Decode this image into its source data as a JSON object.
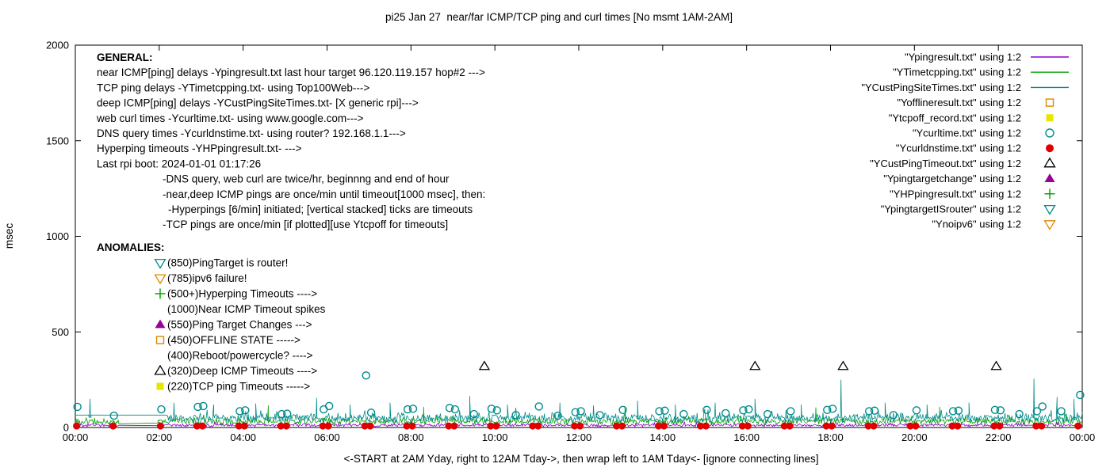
{
  "chart_data": {
    "type": "line+scatter",
    "title": "pi25 Jan 27  near/far ICMP/TCP ping and curl times [No msmt 1AM-2AM]",
    "ylabel": "msec",
    "xlabel": "<-START at 2AM Yday, right to 12AM Tday->, then wrap left to 1AM Tday<- [ignore connecting lines]",
    "xlim_hours": [
      0,
      24
    ],
    "ylim_msec": [
      0,
      2000
    ],
    "yticks": [
      0,
      500,
      1000,
      1500,
      2000
    ],
    "xticks": [
      {
        "hour": 0,
        "label": "00:00"
      },
      {
        "hour": 2,
        "label": "02:00"
      },
      {
        "hour": 4,
        "label": "04:00"
      },
      {
        "hour": 6,
        "label": "06:00"
      },
      {
        "hour": 8,
        "label": "08:00"
      },
      {
        "hour": 10,
        "label": "10:00"
      },
      {
        "hour": 12,
        "label": "12:00"
      },
      {
        "hour": 14,
        "label": "14:00"
      },
      {
        "hour": 16,
        "label": "16:00"
      },
      {
        "hour": 18,
        "label": "18:00"
      },
      {
        "hour": 20,
        "label": "20:00"
      },
      {
        "hour": 22,
        "label": "22:00"
      },
      {
        "hour": 24,
        "label": "00:00"
      }
    ],
    "no_measurement_gap_hours": [
      1,
      2
    ],
    "legend": [
      {
        "label": "\"Ypingresult.txt\" using 1:2",
        "marker": "line",
        "color": "#9400d3"
      },
      {
        "label": "\"YTimetcpping.txt\" using 1:2",
        "marker": "line",
        "color": "#00a000"
      },
      {
        "label": "\"YCustPingSiteTimes.txt\" using 1:2",
        "marker": "line",
        "color": "#008b8b"
      },
      {
        "label": "\"Yofflineresult.txt\" using 1:2",
        "marker": "square-open",
        "color": "#dd8800"
      },
      {
        "label": "\"Ytcpoff_record.txt\" using 1:2",
        "marker": "square-filled",
        "color": "#e6e600"
      },
      {
        "label": "\"Ycurltime.txt\" using 1:2",
        "marker": "circle-open",
        "color": "#008b8b"
      },
      {
        "label": "\"Ycurldnstime.txt\" using 1:2",
        "marker": "circle-filled",
        "color": "#e00000"
      },
      {
        "label": "\"YCustPingTimeout.txt\" using 1:2",
        "marker": "triangle-up-open",
        "color": "#000000"
      },
      {
        "label": "\"Ypingtargetchange\" using 1:2",
        "marker": "triangle-up-filled",
        "color": "#990099"
      },
      {
        "label": "\"YHPpingresult.txt\" using 1:2",
        "marker": "plus",
        "color": "#00a000"
      },
      {
        "label": "\"YpingtargetISrouter\" using 1:2",
        "marker": "triangle-down-open",
        "color": "#008b8b"
      },
      {
        "label": "\"Ynoipv6\" using 1:2",
        "marker": "triangle-down-open",
        "color": "#dd8800"
      }
    ],
    "annotations": {
      "general": {
        "header": "GENERAL:",
        "lines": [
          {
            "indent": 0,
            "text": "near ICMP[ping] delays -Ypingresult.txt last hour target 96.120.119.157 hop#2 --->"
          },
          {
            "indent": 0,
            "text": "TCP ping delays -YTimetcpping.txt- using Top100Web--->"
          },
          {
            "indent": 0,
            "text": "deep ICMP[ping] delays -YCustPingSiteTimes.txt- [X generic rpi]--->"
          },
          {
            "indent": 0,
            "text": "web curl times -Ycurltime.txt- using www.google.com--->"
          },
          {
            "indent": 0,
            "text": "DNS query times -Ycurldnstime.txt- using router? 192.168.1.1--->"
          },
          {
            "indent": 0,
            "text": "Hyperping timeouts -YHPpingresult.txt- --->"
          },
          {
            "indent": 0,
            "text": "Last rpi boot: 2024-01-01 01:17:26"
          },
          {
            "indent": 1,
            "text": "-DNS query, web curl are twice/hr, beginnng and end of hour"
          },
          {
            "indent": 1,
            "text": "-near,deep ICMP pings are once/min until timeout[1000 msec], then:"
          },
          {
            "indent": 2,
            "text": "-Hyperpings [6/min] initiated; [vertical stacked] ticks are timeouts"
          },
          {
            "indent": 1,
            "text": "-TCP pings are once/min [if plotted][use Ytcpoff for timeouts]"
          }
        ]
      },
      "anomalies": {
        "header": "ANOMALIES:",
        "items": [
          {
            "marker": "triangle-down-open",
            "color": "#008b8b",
            "text": "(850)PingTarget is router!"
          },
          {
            "marker": "triangle-down-open",
            "color": "#dd8800",
            "text": "(785)ipv6 failure!"
          },
          {
            "marker": "plus",
            "color": "#00a000",
            "text": "(500+)Hyperping Timeouts ---->"
          },
          {
            "marker": null,
            "color": null,
            "text": "(1000)Near ICMP Timeout spikes"
          },
          {
            "marker": "triangle-up-filled",
            "color": "#990099",
            "text": "(550)Ping Target Changes --->"
          },
          {
            "marker": "square-open",
            "color": "#dd8800",
            "text": "(450)OFFLINE STATE ----->"
          },
          {
            "marker": null,
            "color": null,
            "text": "(400)Reboot/powercycle? ---->"
          },
          {
            "marker": "triangle-up-open",
            "color": "#000000",
            "text": "(320)Deep ICMP Timeouts ---->"
          },
          {
            "marker": "square-filled",
            "color": "#e6e600",
            "text": "(220)TCP ping Timeouts ----->"
          }
        ]
      }
    },
    "series": {
      "near_icmp": {
        "label": "Ypingresult.txt",
        "style": "line",
        "color": "#9400d3",
        "baseline_msec": 12,
        "noise_msec": 10,
        "seed": 3,
        "spikes": []
      },
      "tcp_ping": {
        "label": "YTimetcpping.txt",
        "style": "line",
        "color": "#00a000",
        "baseline_msec": 32,
        "noise_msec": 22,
        "seed": 7,
        "spikes": [
          [
            4.6,
            115
          ],
          [
            8.3,
            108
          ],
          [
            13.1,
            112
          ],
          [
            17.65,
            105
          ],
          [
            20.6,
            108
          ]
        ]
      },
      "deep_icmp": {
        "label": "YCustPingSiteTimes.txt",
        "style": "line",
        "color": "#008b8b",
        "baseline_msec": 50,
        "noise_msec": 30,
        "seed": 13,
        "plateau": {
          "x1": 0,
          "x2": 2.17,
          "y": 65
        },
        "spikes": [
          [
            0.35,
            150
          ],
          [
            2.35,
            130
          ],
          [
            3.3,
            120
          ],
          [
            4.3,
            125
          ],
          [
            5.75,
            155
          ],
          [
            6.55,
            120
          ],
          [
            7.5,
            130
          ],
          [
            9.4,
            165
          ],
          [
            10.3,
            120
          ],
          [
            11.55,
            130
          ],
          [
            12.35,
            115
          ],
          [
            13.4,
            140
          ],
          [
            14.3,
            120
          ],
          [
            15.25,
            130
          ],
          [
            16.2,
            150
          ],
          [
            17.3,
            120
          ],
          [
            18.25,
            250
          ],
          [
            19.3,
            130
          ],
          [
            20.3,
            120
          ],
          [
            21.3,
            130
          ],
          [
            22.85,
            255
          ],
          [
            23.4,
            160
          ],
          [
            23.8,
            150
          ]
        ]
      },
      "web_curl": {
        "label": "Ycurltime.txt",
        "style": "points",
        "marker": "circle-open",
        "color": "#008b8b",
        "points": [
          [
            0.05,
            108
          ],
          [
            0.92,
            62
          ],
          [
            2.05,
            95
          ],
          [
            2.92,
            108
          ],
          [
            3.05,
            112
          ],
          [
            3.92,
            85
          ],
          [
            4.05,
            90
          ],
          [
            4.92,
            70
          ],
          [
            5.05,
            72
          ],
          [
            5.92,
            95
          ],
          [
            6.05,
            112
          ],
          [
            6.93,
            272
          ],
          [
            7.05,
            78
          ],
          [
            7.92,
            95
          ],
          [
            8.05,
            98
          ],
          [
            8.92,
            102
          ],
          [
            9.05,
            95
          ],
          [
            9.5,
            70
          ],
          [
            9.92,
            98
          ],
          [
            10.05,
            90
          ],
          [
            10.5,
            65
          ],
          [
            11.05,
            110
          ],
          [
            11.5,
            62
          ],
          [
            11.92,
            80
          ],
          [
            12.05,
            85
          ],
          [
            12.5,
            65
          ],
          [
            13.05,
            92
          ],
          [
            13.92,
            85
          ],
          [
            14.05,
            88
          ],
          [
            14.5,
            70
          ],
          [
            15.05,
            92
          ],
          [
            15.5,
            75
          ],
          [
            15.92,
            90
          ],
          [
            16.05,
            95
          ],
          [
            16.5,
            70
          ],
          [
            17.05,
            85
          ],
          [
            17.92,
            92
          ],
          [
            18.05,
            98
          ],
          [
            18.92,
            85
          ],
          [
            19.05,
            88
          ],
          [
            19.5,
            65
          ],
          [
            20.05,
            90
          ],
          [
            20.92,
            85
          ],
          [
            21.05,
            88
          ],
          [
            21.92,
            92
          ],
          [
            22.05,
            90
          ],
          [
            22.5,
            70
          ],
          [
            22.92,
            85
          ],
          [
            23.05,
            110
          ],
          [
            23.5,
            85
          ],
          [
            23.95,
            170
          ]
        ]
      },
      "dns_query": {
        "label": "Ycurldnstime.txt",
        "style": "points",
        "marker": "circle-filled",
        "color": "#e00000",
        "points": [
          [
            0.03,
            8
          ],
          [
            0.9,
            8
          ],
          [
            2.03,
            8
          ],
          [
            2.9,
            8
          ],
          [
            3.03,
            8
          ],
          [
            3.9,
            8
          ],
          [
            4.03,
            8
          ],
          [
            4.9,
            8
          ],
          [
            5.03,
            8
          ],
          [
            5.9,
            8
          ],
          [
            6.03,
            8
          ],
          [
            6.9,
            8
          ],
          [
            7.03,
            8
          ],
          [
            7.9,
            8
          ],
          [
            8.03,
            8
          ],
          [
            8.9,
            8
          ],
          [
            9.03,
            8
          ],
          [
            9.9,
            8
          ],
          [
            10.03,
            8
          ],
          [
            10.9,
            8
          ],
          [
            11.03,
            8
          ],
          [
            11.9,
            8
          ],
          [
            12.03,
            8
          ],
          [
            12.9,
            8
          ],
          [
            13.03,
            8
          ],
          [
            13.9,
            8
          ],
          [
            14.03,
            8
          ],
          [
            14.9,
            8
          ],
          [
            15.03,
            8
          ],
          [
            15.9,
            8
          ],
          [
            16.03,
            8
          ],
          [
            16.9,
            8
          ],
          [
            17.03,
            8
          ],
          [
            17.9,
            8
          ],
          [
            18.03,
            8
          ],
          [
            18.9,
            8
          ],
          [
            19.03,
            8
          ],
          [
            19.9,
            8
          ],
          [
            20.03,
            8
          ],
          [
            20.9,
            8
          ],
          [
            21.03,
            8
          ],
          [
            21.9,
            8
          ],
          [
            22.03,
            8
          ],
          [
            22.9,
            8
          ],
          [
            23.03,
            8
          ],
          [
            23.9,
            8
          ]
        ]
      },
      "deep_icmp_timeouts": {
        "label": "YCustPingTimeout.txt",
        "style": "points",
        "marker": "triangle-up-open",
        "color": "#000000",
        "points": [
          [
            9.75,
            320
          ],
          [
            16.2,
            320
          ],
          [
            18.3,
            320
          ],
          [
            21.95,
            320
          ]
        ]
      },
      "hyperping_timeouts": {
        "label": "YHPpingresult.txt",
        "style": "points",
        "marker": "plus",
        "color": "#00a000",
        "points": []
      },
      "ping_target_changes": {
        "label": "Ypingtargetchange",
        "style": "points",
        "marker": "triangle-up-filled",
        "color": "#990099",
        "points": []
      },
      "offline_state": {
        "label": "Yofflineresult.txt",
        "style": "points",
        "marker": "square-open",
        "color": "#dd8800",
        "points": []
      },
      "tcp_ping_timeouts": {
        "label": "Ytcpoff_record.txt",
        "style": "points",
        "marker": "square-filled",
        "color": "#e6e600",
        "points": []
      },
      "ping_target_is_router": {
        "label": "YpingtargetISrouter",
        "style": "points",
        "marker": "triangle-down-open",
        "color": "#008b8b",
        "points": []
      },
      "no_ipv6": {
        "label": "Ynoipv6",
        "style": "points",
        "marker": "triangle-down-open",
        "color": "#dd8800",
        "points": []
      }
    }
  }
}
